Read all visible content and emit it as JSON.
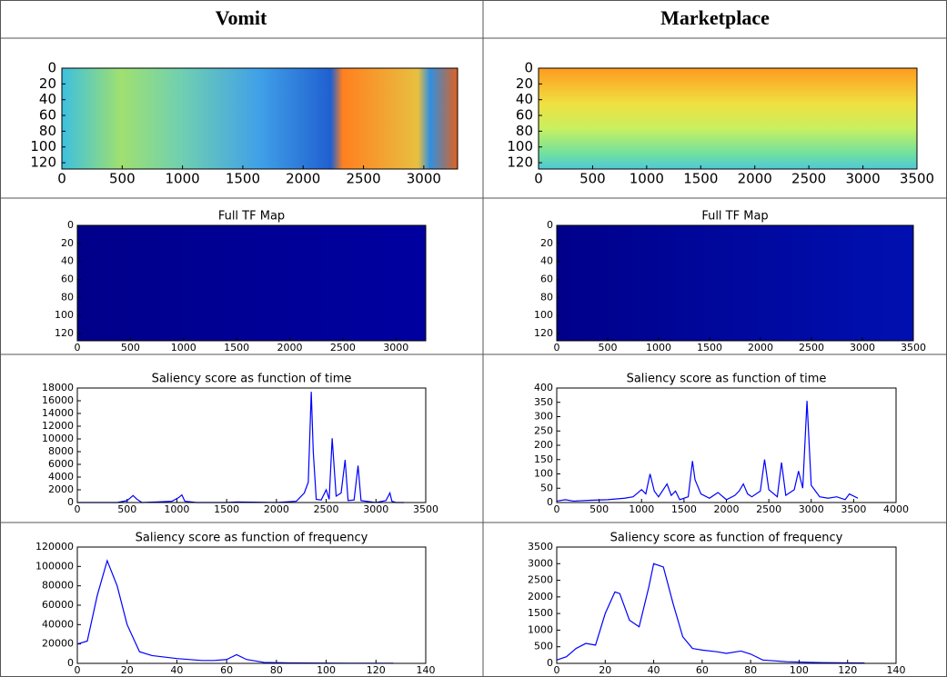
{
  "table": {
    "headers": [
      "Vomit",
      "Marketplace"
    ]
  },
  "chart_data": [
    {
      "type": "heatmap",
      "xlim": [
        0,
        3280
      ],
      "ylim": [
        128,
        0
      ],
      "xticks": [
        0,
        500,
        1000,
        1500,
        2000,
        2500,
        3000
      ],
      "yticks": [
        0,
        20,
        40,
        60,
        80,
        100,
        120
      ]
    },
    {
      "type": "heatmap",
      "xlim": [
        0,
        3500
      ],
      "ylim": [
        128,
        0
      ],
      "xticks": [
        0,
        500,
        1000,
        1500,
        2000,
        2500,
        3000,
        3500
      ],
      "yticks": [
        0,
        20,
        40,
        60,
        80,
        100,
        120
      ]
    },
    {
      "type": "heatmap",
      "title": "Full TF Map",
      "xlim": [
        0,
        3280
      ],
      "ylim": [
        128,
        0
      ],
      "xticks": [
        0,
        500,
        1000,
        1500,
        2000,
        2500,
        3000
      ],
      "yticks": [
        0,
        20,
        40,
        60,
        80,
        100,
        120
      ]
    },
    {
      "type": "heatmap",
      "title": "Full TF Map",
      "xlim": [
        0,
        3500
      ],
      "ylim": [
        128,
        0
      ],
      "xticks": [
        0,
        500,
        1000,
        1500,
        2000,
        2500,
        3000,
        3500
      ],
      "yticks": [
        0,
        20,
        40,
        60,
        80,
        100,
        120
      ]
    },
    {
      "type": "line",
      "title": "Saliency score as function of time",
      "color": "#0000ff",
      "x": [
        0,
        400,
        500,
        560,
        600,
        650,
        800,
        950,
        1020,
        1050,
        1080,
        1200,
        1500,
        1600,
        2000,
        2200,
        2280,
        2320,
        2350,
        2370,
        2400,
        2450,
        2500,
        2530,
        2560,
        2600,
        2650,
        2690,
        2720,
        2780,
        2820,
        2850,
        2900,
        3000,
        3100,
        3140,
        3160,
        3200,
        3280
      ],
      "values": [
        0,
        0,
        300,
        1100,
        500,
        0,
        100,
        200,
        800,
        1200,
        200,
        0,
        0,
        100,
        0,
        200,
        1500,
        3200,
        17400,
        8000,
        500,
        400,
        2000,
        500,
        10100,
        1000,
        1500,
        6700,
        300,
        400,
        5800,
        300,
        200,
        0,
        300,
        1500,
        200,
        0,
        0
      ],
      "xlim": [
        0,
        3500
      ],
      "ylim": [
        0,
        18000
      ],
      "xticks": [
        0,
        500,
        1000,
        1500,
        2000,
        2500,
        3000,
        3500
      ],
      "yticks": [
        0,
        2000,
        4000,
        6000,
        8000,
        10000,
        12000,
        14000,
        16000,
        18000
      ]
    },
    {
      "type": "line",
      "title": "Saliency score as function of time",
      "color": "#0000ff",
      "x": [
        0,
        100,
        200,
        400,
        600,
        800,
        900,
        1000,
        1050,
        1100,
        1150,
        1200,
        1300,
        1350,
        1400,
        1450,
        1550,
        1600,
        1630,
        1700,
        1800,
        1900,
        2000,
        2100,
        2150,
        2200,
        2250,
        2300,
        2400,
        2450,
        2500,
        2600,
        2650,
        2700,
        2800,
        2850,
        2900,
        2950,
        3000,
        3050,
        3100,
        3200,
        3300,
        3400,
        3450,
        3550
      ],
      "values": [
        5,
        10,
        5,
        8,
        10,
        15,
        20,
        45,
        30,
        100,
        40,
        20,
        65,
        25,
        40,
        10,
        20,
        145,
        80,
        30,
        15,
        35,
        10,
        25,
        40,
        65,
        30,
        20,
        40,
        150,
        45,
        20,
        140,
        25,
        45,
        110,
        50,
        355,
        60,
        40,
        20,
        15,
        20,
        10,
        30,
        15
      ],
      "xlim": [
        0,
        4000
      ],
      "ylim": [
        0,
        400
      ],
      "xticks": [
        0,
        500,
        1000,
        1500,
        2000,
        2500,
        3000,
        3500,
        4000
      ],
      "yticks": [
        0,
        50,
        100,
        150,
        200,
        250,
        300,
        350,
        400
      ]
    },
    {
      "type": "line",
      "title": "Saliency score as function of frequency",
      "color": "#0000ff",
      "x": [
        0,
        4,
        8,
        12,
        16,
        20,
        25,
        30,
        40,
        50,
        55,
        60,
        64,
        68,
        75,
        85,
        100,
        127
      ],
      "values": [
        20000,
        23000,
        70000,
        106000,
        80000,
        40000,
        12000,
        8000,
        5000,
        3000,
        3000,
        4000,
        9000,
        4000,
        1000,
        500,
        200,
        100
      ],
      "xlim": [
        0,
        140
      ],
      "ylim": [
        0,
        120000
      ],
      "xticks": [
        0,
        20,
        40,
        60,
        80,
        100,
        120,
        140
      ],
      "yticks": [
        0,
        20000,
        40000,
        60000,
        80000,
        100000,
        120000
      ]
    },
    {
      "type": "line",
      "title": "Saliency score as function of frequency",
      "color": "#0000ff",
      "x": [
        0,
        4,
        8,
        12,
        16,
        20,
        24,
        26,
        30,
        34,
        38,
        40,
        44,
        48,
        52,
        56,
        60,
        66,
        70,
        76,
        80,
        85,
        95,
        110,
        127
      ],
      "values": [
        100,
        200,
        450,
        600,
        550,
        1500,
        2150,
        2100,
        1300,
        1100,
        2300,
        3000,
        2900,
        1800,
        800,
        450,
        400,
        350,
        300,
        370,
        280,
        100,
        50,
        20,
        10
      ],
      "xlim": [
        0,
        140
      ],
      "ylim": [
        0,
        3500
      ],
      "xticks": [
        0,
        20,
        40,
        60,
        80,
        100,
        120,
        140
      ],
      "yticks": [
        0,
        500,
        1000,
        1500,
        2000,
        2500,
        3000,
        3500
      ]
    }
  ]
}
